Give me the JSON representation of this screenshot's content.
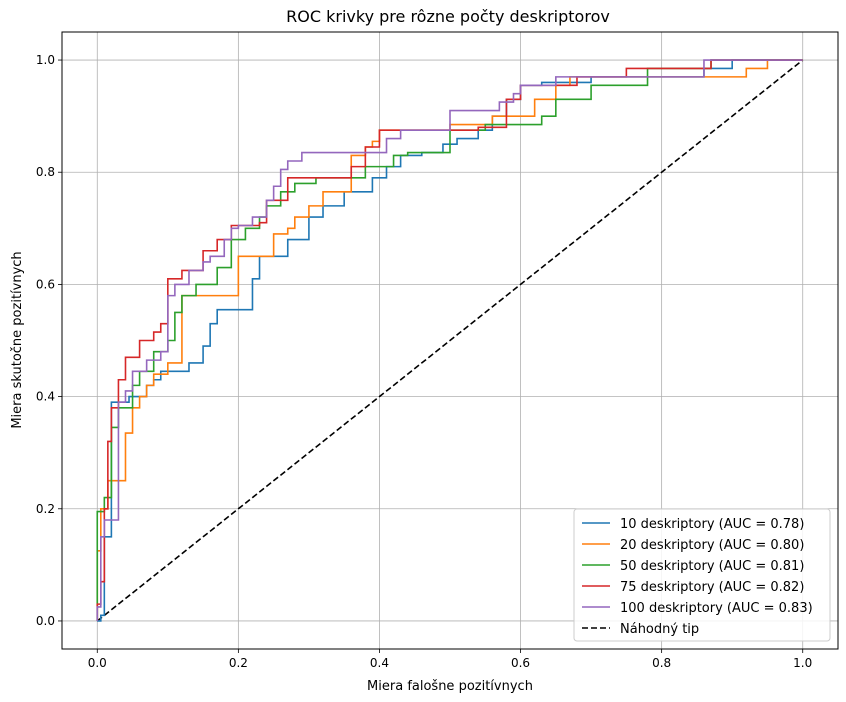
{
  "chart_data": {
    "type": "line",
    "title": "ROC krivky pre rôzne počty deskriptorov",
    "xlabel": "Miera falošne pozitívnych",
    "ylabel": "Miera skutočne pozitívnych",
    "xlim": [
      -0.05,
      1.05
    ],
    "ylim": [
      -0.05,
      1.05
    ],
    "xticks": [
      "0.0",
      "0.2",
      "0.4",
      "0.6",
      "0.8",
      "1.0"
    ],
    "yticks": [
      "0.0",
      "0.2",
      "0.4",
      "0.6",
      "0.8",
      "1.0"
    ],
    "grid": true,
    "legend_position": "lower-right",
    "series": [
      {
        "name": "10 deskriptory (AUC = 0.78)",
        "color": "#1f77b4",
        "x": [
          0,
          0.005,
          0.005,
          0.01,
          0.01,
          0.02,
          0.02,
          0.045,
          0.045,
          0.07,
          0.07,
          0.08,
          0.08,
          0.09,
          0.09,
          0.13,
          0.13,
          0.15,
          0.15,
          0.16,
          0.16,
          0.17,
          0.17,
          0.22,
          0.22,
          0.23,
          0.23,
          0.24,
          0.24,
          0.27,
          0.27,
          0.3,
          0.3,
          0.32,
          0.32,
          0.35,
          0.35,
          0.39,
          0.39,
          0.41,
          0.41,
          0.43,
          0.43,
          0.46,
          0.46,
          0.49,
          0.49,
          0.51,
          0.51,
          0.54,
          0.54,
          0.56,
          0.56,
          0.58,
          0.58,
          0.6,
          0.6,
          0.63,
          0.63,
          0.66,
          0.66,
          0.7,
          0.7,
          0.76,
          0.76,
          0.86,
          0.86,
          0.9,
          0.9,
          1.0
        ],
        "y": [
          0,
          0,
          0.01,
          0.01,
          0.15,
          0.15,
          0.39,
          0.39,
          0.4,
          0.4,
          0.42,
          0.42,
          0.43,
          0.43,
          0.445,
          0.445,
          0.46,
          0.46,
          0.49,
          0.49,
          0.53,
          0.53,
          0.555,
          0.555,
          0.61,
          0.61,
          0.65,
          0.65,
          0.65,
          0.65,
          0.68,
          0.68,
          0.72,
          0.72,
          0.74,
          0.74,
          0.765,
          0.765,
          0.79,
          0.79,
          0.81,
          0.81,
          0.83,
          0.83,
          0.835,
          0.835,
          0.85,
          0.85,
          0.86,
          0.86,
          0.875,
          0.875,
          0.9,
          0.9,
          0.93,
          0.93,
          0.955,
          0.955,
          0.96,
          0.96,
          0.96,
          0.96,
          0.97,
          0.97,
          0.97,
          0.97,
          0.985,
          0.985,
          1.0,
          1.0
        ]
      },
      {
        "name": "20 deskriptory (AUC = 0.80)",
        "color": "#ff7f0e",
        "x": [
          0,
          0,
          0.005,
          0.005,
          0.015,
          0.015,
          0.04,
          0.04,
          0.05,
          0.05,
          0.06,
          0.06,
          0.07,
          0.07,
          0.08,
          0.08,
          0.1,
          0.1,
          0.12,
          0.12,
          0.2,
          0.2,
          0.25,
          0.25,
          0.27,
          0.27,
          0.28,
          0.28,
          0.3,
          0.3,
          0.32,
          0.32,
          0.36,
          0.36,
          0.38,
          0.38,
          0.39,
          0.39,
          0.4,
          0.4,
          0.44,
          0.44,
          0.5,
          0.5,
          0.53,
          0.53,
          0.56,
          0.56,
          0.58,
          0.58,
          0.62,
          0.62,
          0.65,
          0.65,
          0.67,
          0.67,
          0.72,
          0.72,
          0.8,
          0.8,
          0.86,
          0.86,
          0.92,
          0.92,
          0.95,
          0.95,
          1.0
        ],
        "y": [
          0,
          0.125,
          0.125,
          0.2,
          0.2,
          0.25,
          0.25,
          0.335,
          0.335,
          0.38,
          0.38,
          0.4,
          0.4,
          0.42,
          0.42,
          0.44,
          0.44,
          0.46,
          0.46,
          0.58,
          0.58,
          0.65,
          0.65,
          0.69,
          0.69,
          0.7,
          0.7,
          0.72,
          0.72,
          0.74,
          0.74,
          0.765,
          0.765,
          0.83,
          0.83,
          0.845,
          0.845,
          0.855,
          0.855,
          0.875,
          0.875,
          0.875,
          0.875,
          0.885,
          0.885,
          0.885,
          0.885,
          0.9,
          0.9,
          0.9,
          0.9,
          0.93,
          0.93,
          0.955,
          0.955,
          0.97,
          0.97,
          0.97,
          0.97,
          0.97,
          0.97,
          0.97,
          0.97,
          0.985,
          0.985,
          1.0,
          1.0
        ]
      },
      {
        "name": "50 deskriptory (AUC = 0.81)",
        "color": "#2ca02c",
        "x": [
          0,
          0,
          0.01,
          0.01,
          0.02,
          0.02,
          0.03,
          0.03,
          0.05,
          0.05,
          0.06,
          0.06,
          0.08,
          0.08,
          0.1,
          0.1,
          0.11,
          0.11,
          0.12,
          0.12,
          0.14,
          0.14,
          0.17,
          0.17,
          0.19,
          0.19,
          0.21,
          0.21,
          0.23,
          0.23,
          0.24,
          0.24,
          0.26,
          0.26,
          0.28,
          0.28,
          0.31,
          0.31,
          0.36,
          0.36,
          0.38,
          0.38,
          0.42,
          0.42,
          0.44,
          0.44,
          0.5,
          0.5,
          0.55,
          0.55,
          0.6,
          0.6,
          0.63,
          0.63,
          0.65,
          0.65,
          0.7,
          0.7,
          0.78,
          0.78,
          0.8,
          0.8,
          0.87,
          0.87,
          1.0
        ],
        "y": [
          0,
          0.195,
          0.195,
          0.22,
          0.22,
          0.345,
          0.345,
          0.38,
          0.38,
          0.42,
          0.42,
          0.445,
          0.445,
          0.48,
          0.48,
          0.5,
          0.5,
          0.55,
          0.55,
          0.58,
          0.58,
          0.6,
          0.6,
          0.63,
          0.63,
          0.68,
          0.68,
          0.7,
          0.7,
          0.72,
          0.72,
          0.74,
          0.74,
          0.765,
          0.765,
          0.78,
          0.78,
          0.79,
          0.79,
          0.79,
          0.79,
          0.81,
          0.81,
          0.83,
          0.83,
          0.835,
          0.835,
          0.875,
          0.875,
          0.885,
          0.885,
          0.885,
          0.885,
          0.9,
          0.9,
          0.93,
          0.93,
          0.955,
          0.955,
          0.985,
          0.985,
          0.985,
          0.985,
          1.0,
          1.0
        ]
      },
      {
        "name": "75 deskriptory (AUC = 0.82)",
        "color": "#d62728",
        "x": [
          0,
          0,
          0.005,
          0.005,
          0.01,
          0.01,
          0.015,
          0.015,
          0.02,
          0.02,
          0.03,
          0.03,
          0.04,
          0.04,
          0.06,
          0.06,
          0.08,
          0.08,
          0.09,
          0.09,
          0.1,
          0.1,
          0.12,
          0.12,
          0.15,
          0.15,
          0.17,
          0.17,
          0.19,
          0.19,
          0.23,
          0.23,
          0.24,
          0.24,
          0.27,
          0.27,
          0.28,
          0.28,
          0.36,
          0.36,
          0.38,
          0.38,
          0.4,
          0.4,
          0.43,
          0.43,
          0.48,
          0.48,
          0.54,
          0.54,
          0.58,
          0.58,
          0.6,
          0.6,
          0.68,
          0.68,
          0.75,
          0.75,
          0.86,
          0.86,
          0.87,
          0.87,
          1.0
        ],
        "y": [
          0,
          0.03,
          0.03,
          0.07,
          0.07,
          0.2,
          0.2,
          0.32,
          0.32,
          0.38,
          0.38,
          0.43,
          0.43,
          0.47,
          0.47,
          0.5,
          0.5,
          0.515,
          0.515,
          0.53,
          0.53,
          0.61,
          0.61,
          0.625,
          0.625,
          0.66,
          0.66,
          0.68,
          0.68,
          0.705,
          0.705,
          0.71,
          0.71,
          0.75,
          0.75,
          0.79,
          0.79,
          0.79,
          0.79,
          0.81,
          0.81,
          0.845,
          0.845,
          0.875,
          0.875,
          0.875,
          0.875,
          0.875,
          0.875,
          0.88,
          0.88,
          0.93,
          0.93,
          0.955,
          0.955,
          0.97,
          0.97,
          0.985,
          0.985,
          0.985,
          0.985,
          1.0,
          1.0
        ]
      },
      {
        "name": "100 deskriptory (AUC = 0.83)",
        "color": "#9467bd",
        "x": [
          0,
          0,
          0.005,
          0.005,
          0.01,
          0.01,
          0.03,
          0.03,
          0.04,
          0.04,
          0.05,
          0.05,
          0.07,
          0.07,
          0.09,
          0.09,
          0.1,
          0.1,
          0.11,
          0.11,
          0.13,
          0.13,
          0.15,
          0.15,
          0.16,
          0.16,
          0.18,
          0.18,
          0.19,
          0.19,
          0.2,
          0.2,
          0.22,
          0.22,
          0.24,
          0.24,
          0.25,
          0.25,
          0.26,
          0.26,
          0.27,
          0.27,
          0.29,
          0.29,
          0.41,
          0.41,
          0.43,
          0.43,
          0.5,
          0.5,
          0.57,
          0.57,
          0.59,
          0.59,
          0.6,
          0.6,
          0.65,
          0.65,
          0.86,
          0.86,
          1.0
        ],
        "y": [
          0,
          0.025,
          0.025,
          0.15,
          0.15,
          0.18,
          0.18,
          0.39,
          0.39,
          0.41,
          0.41,
          0.445,
          0.445,
          0.465,
          0.465,
          0.48,
          0.48,
          0.58,
          0.58,
          0.6,
          0.6,
          0.625,
          0.625,
          0.64,
          0.64,
          0.65,
          0.65,
          0.68,
          0.68,
          0.7,
          0.7,
          0.705,
          0.705,
          0.72,
          0.72,
          0.75,
          0.75,
          0.775,
          0.775,
          0.805,
          0.805,
          0.82,
          0.82,
          0.835,
          0.835,
          0.86,
          0.86,
          0.875,
          0.875,
          0.91,
          0.91,
          0.925,
          0.925,
          0.94,
          0.94,
          0.955,
          0.955,
          0.97,
          0.97,
          1.0,
          1.0
        ]
      },
      {
        "name": "Náhodný tip",
        "color": "#000000",
        "dashed": true,
        "x": [
          0,
          1
        ],
        "y": [
          0,
          1
        ]
      }
    ]
  }
}
